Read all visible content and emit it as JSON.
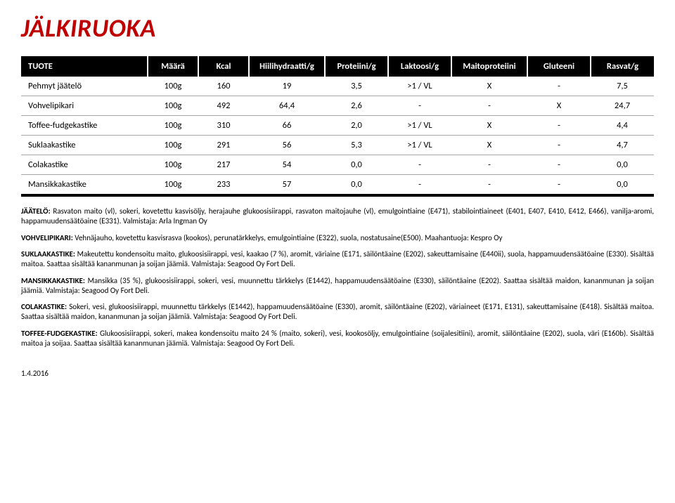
{
  "title": "JÄLKIRUOKA",
  "table": {
    "headers": [
      "TUOTE",
      "Määrä",
      "Kcal",
      "Hiilihydraatti/g",
      "Proteiini/g",
      "Laktoosi/g",
      "Maitoproteiini",
      "Gluteeni",
      "Rasvat/g"
    ],
    "rows": [
      [
        "Pehmyt jäätelö",
        "100g",
        "160",
        "19",
        "3,5",
        ">1 / VL",
        "X",
        "-",
        "7,5"
      ],
      [
        "Vohvelipikari",
        "100g",
        "492",
        "64,4",
        "2,6",
        "-",
        "-",
        "X",
        "24,7"
      ],
      [
        "Toffee-fudgekastike",
        "100g",
        "310",
        "66",
        "2,0",
        ">1 / VL",
        "X",
        "-",
        "4,4"
      ],
      [
        "Suklaakastike",
        "100g",
        "291",
        "56",
        "5,3",
        ">1 / VL",
        "X",
        "-",
        "4,7"
      ],
      [
        "Colakastike",
        "100g",
        "217",
        "54",
        "0,0",
        "-",
        "-",
        "-",
        "0,0"
      ],
      [
        "Mansikkakastike",
        "100g",
        "233",
        "57",
        "0,0",
        "-",
        "-",
        "-",
        "0,0"
      ]
    ]
  },
  "paragraphs": [
    {
      "lead": "JÄÄTELÖ:",
      "text": " Rasvaton maito (vl), sokeri, kovetettu kasvisöljy, herajauhe glukoosisiirappi, rasvaton maitojauhe (vl), emulgointiaine (E471), stabilointiaineet (E401, E407, E410, E412, E466), vanilja-aromi, happamuudensäätöaine (E331).  Valmistaja: Arla Ingman Oy"
    },
    {
      "lead": "VOHVELIPIKARI:",
      "text": "  Vehnäjauho, kovetettu kasvisrasva (kookos), perunatärkkelys, emulgointiaine (E322), suola, nostatusaine(E500). Maahantuoja:  Kespro Oy"
    },
    {
      "lead": "SUKLAAKASTIKE:",
      "text": " Makeutettu kondensoitu maito, glukoosisiirappi, vesi, kaakao (7 %), aromit, väriaine (E171, säilöntäaine (E202), sakeuttamisaine (E440ii), suola, happamuudensäätöaine (E330). Sisältää maitoa. Saattaa sisältää kananmunan ja soijan jäämiä. Valmistaja: Seagood Oy Fort Deli."
    },
    {
      "lead": "MANSIKKAKASTIKE:",
      "text": " Mansikka (35 %), glukoosisiirappi, sokeri, vesi, muunnettu tärkkelys (E1442), happamuudensäätöaine (E330), säilöntäaine (E202). Saattaa sisältää maidon, kananmunan ja soijan jäämiä. Valmistaja: Seagood Oy Fort Deli."
    },
    {
      "lead": "COLAKASTIKE:",
      "text": " Sokeri, vesi, glukoosisiirappi, muunnettu tärkkelys (E1442), happamuudensäätöaine (E330), aromit, säilöntäaine (E202), väriaineet (E171, E131), sakeuttamisaine (E418). Sisältää maitoa. Saattaa sisältää maidon, kananmunan ja soijan jäämiä. Valmistaja: Seagood Oy Fort Deli."
    },
    {
      "lead": "TOFFEE-FUDGEKASTIKE:",
      "text": " Glukoosisiirappi, sokeri, makea kondensoitu maito 24 % (maito, sokeri), vesi, kookosöljy, emulgointiaine (soijalesitiini), aromit, säilöntäaine (E202), suola, väri (E160b). Sisältää maitoa ja soijaa. Saattaa sisältää kananmunan jäämiä. Valmistaja: Seagood Oy Fort Deli."
    }
  ],
  "footer_date": "1.4.2016"
}
